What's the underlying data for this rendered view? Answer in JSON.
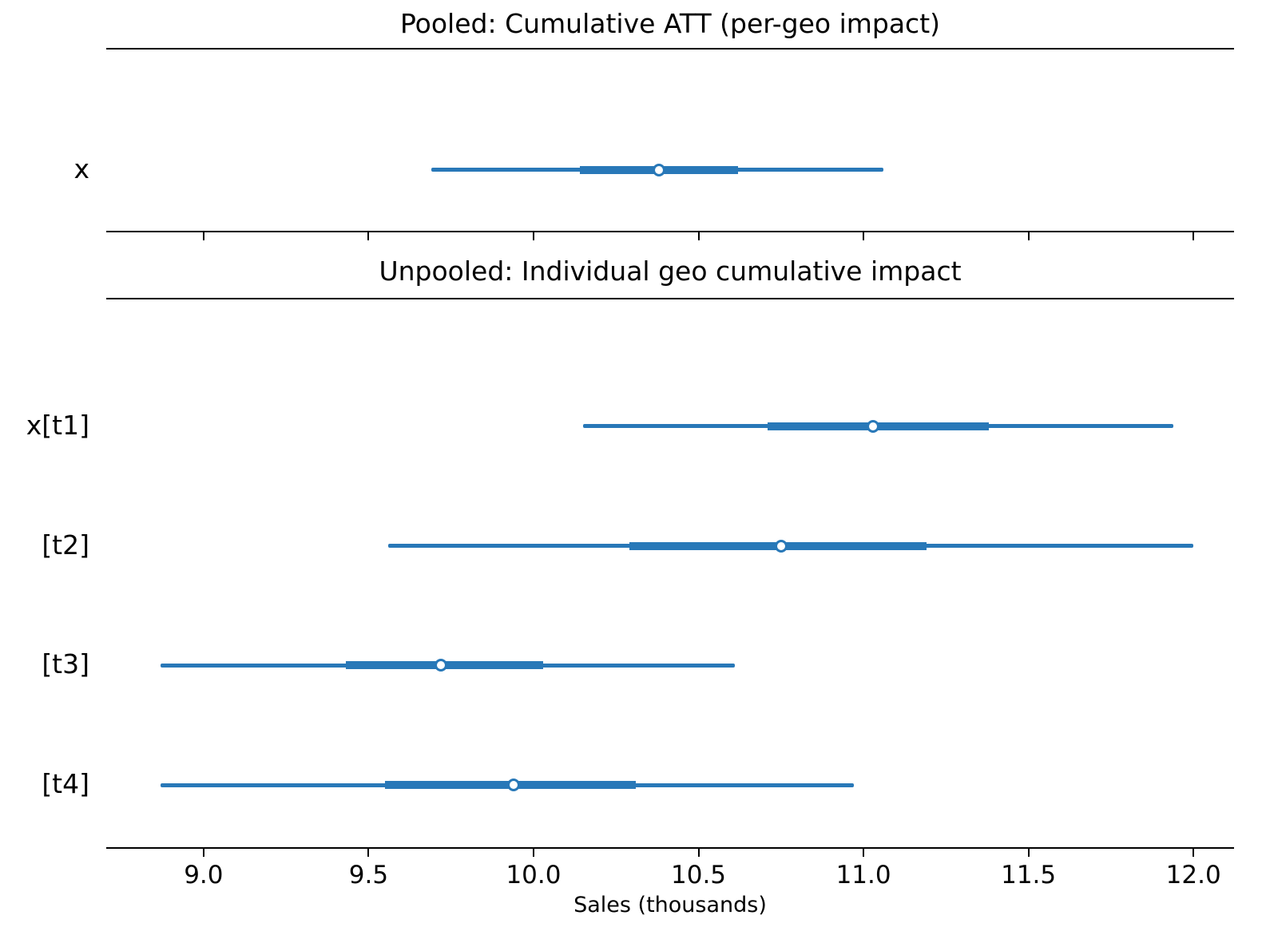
{
  "chart_data": {
    "type": "forest",
    "description": "Two-panel forest plot of posterior cumulative impact estimates; open circle = point estimate, thick band = inner interval, thin line = outer interval",
    "xlabel": "Sales (thousands)",
    "x_tick_labels": [
      "9.0",
      "9.5",
      "10.0",
      "10.5",
      "11.0",
      "11.5",
      "12.0"
    ],
    "x_tick_values": [
      9.0,
      9.5,
      10.0,
      10.5,
      11.0,
      11.5,
      12.0
    ],
    "xlim": [
      8.705,
      12.123
    ],
    "grid": "off",
    "accent_color": "#2878b8",
    "spine_color": "#000000",
    "panels": [
      {
        "title": "Pooled: Cumulative ATT (per-geo impact)",
        "rows": [
          {
            "label": "x",
            "point": 10.38,
            "inner_interval": [
              10.14,
              10.62
            ],
            "outer_interval": [
              9.69,
              11.06
            ]
          }
        ]
      },
      {
        "title": "Unpooled: Individual geo cumulative impact",
        "rows": [
          {
            "label": "x[t1]",
            "point": 11.03,
            "inner_interval": [
              10.71,
              11.38
            ],
            "outer_interval": [
              10.15,
              11.94
            ]
          },
          {
            "label": "[t2]",
            "point": 10.75,
            "inner_interval": [
              10.29,
              11.19
            ],
            "outer_interval": [
              9.56,
              12.0
            ]
          },
          {
            "label": "[t3]",
            "point": 9.72,
            "inner_interval": [
              9.43,
              10.03
            ],
            "outer_interval": [
              8.87,
              10.61
            ]
          },
          {
            "label": "[t4]",
            "point": 9.94,
            "inner_interval": [
              9.55,
              10.31
            ],
            "outer_interval": [
              8.87,
              10.97
            ]
          }
        ]
      }
    ]
  }
}
